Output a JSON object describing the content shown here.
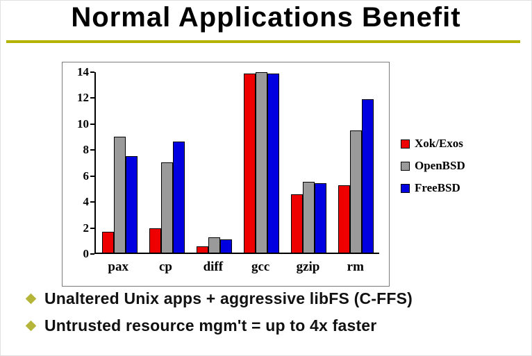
{
  "title": "Normal Applications Benefit",
  "colors": {
    "underline": "#b3b300",
    "bullet_diamond": "#b5b53a",
    "series_red": "#ee0000",
    "series_gray": "#9a9a9a",
    "series_blue": "#0000e0"
  },
  "chart_data": {
    "type": "bar",
    "categories": [
      "pax",
      "cp",
      "diff",
      "gcc",
      "gzip",
      "rm"
    ],
    "series": [
      {
        "name": "Xok/Exos",
        "color": "#ee0000",
        "values": [
          1.6,
          1.9,
          0.5,
          13.9,
          4.5,
          5.2
        ]
      },
      {
        "name": "OpenBSD",
        "color": "#9a9a9a",
        "values": [
          9.0,
          7.0,
          1.2,
          14.0,
          5.5,
          9.5
        ]
      },
      {
        "name": "FreeBSD",
        "color": "#0000e0",
        "values": [
          7.5,
          8.6,
          1.0,
          13.9,
          5.4,
          11.9
        ]
      }
    ],
    "title": "",
    "xlabel": "",
    "ylabel": "",
    "ylim": [
      0,
      14
    ],
    "yticks": [
      0,
      2,
      4,
      6,
      8,
      10,
      12,
      14
    ],
    "grid": false,
    "legend_position": "right"
  },
  "bullets": [
    "Unaltered Unix apps + aggressive libFS (C-FFS)",
    "Untrusted resource mgm't = up to 4x faster"
  ]
}
